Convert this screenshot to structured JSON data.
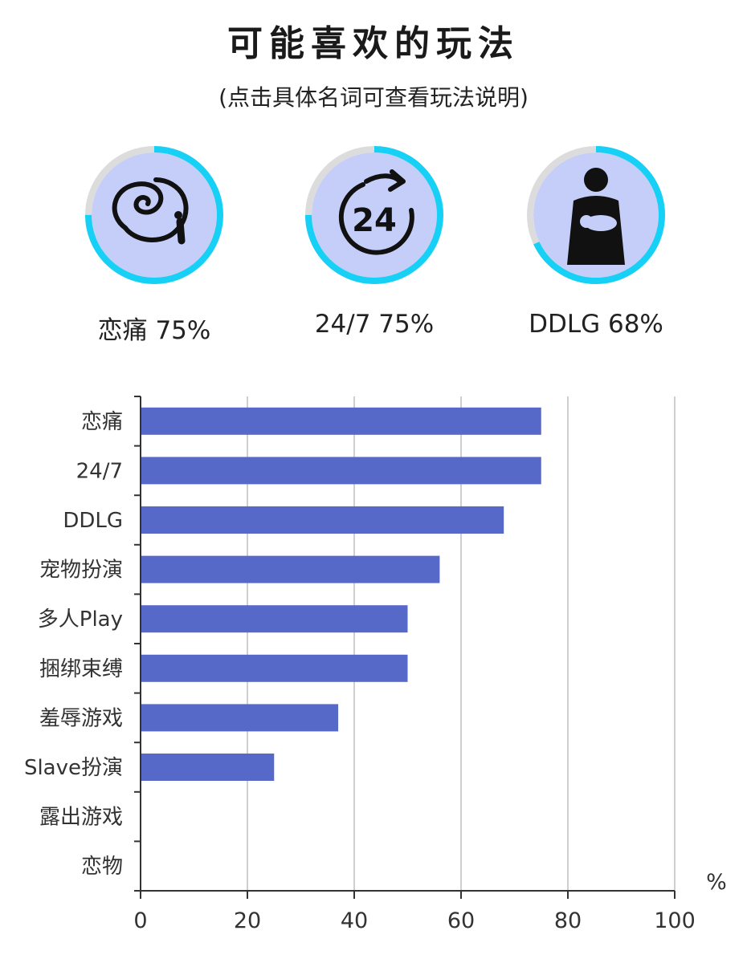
{
  "header": {
    "title": "可能喜欢的玩法",
    "subtitle": "(点击具体名词可查看玩法说明)"
  },
  "top_items": [
    {
      "label": "恋痛 75%",
      "name": "恋痛",
      "percent": 75,
      "icon": "whip-icon"
    },
    {
      "label": "24/7 75%",
      "name": "24/7",
      "percent": 75,
      "icon": "24-7-clock-icon"
    },
    {
      "label": "DDLG 68%",
      "name": "DDLG",
      "percent": 68,
      "icon": "parent-holding-baby-icon"
    }
  ],
  "colors": {
    "ring_progress": "#16d0f5",
    "ring_track": "#dcdcdc",
    "circle_fill": "#c5cef8",
    "bar": "#5769c8",
    "grid": "#cfcfcf",
    "axis": "#333333"
  },
  "chart_data": {
    "type": "bar",
    "orientation": "horizontal",
    "categories": [
      "恋痛",
      "24/7",
      "DDLG",
      "宠物扮演",
      "多人Play",
      "捆绑束缚",
      "羞辱游戏",
      "Slave扮演",
      "露出游戏",
      "恋物"
    ],
    "values": [
      75,
      75,
      68,
      56,
      50,
      50,
      37,
      25,
      0,
      0
    ],
    "xlim": [
      0,
      100
    ],
    "xticks": [
      0,
      20,
      40,
      60,
      80,
      100
    ],
    "xticklabels": [
      "0",
      "20",
      "40",
      "60",
      "80",
      "100"
    ],
    "unit_label": "%",
    "grid": true
  }
}
